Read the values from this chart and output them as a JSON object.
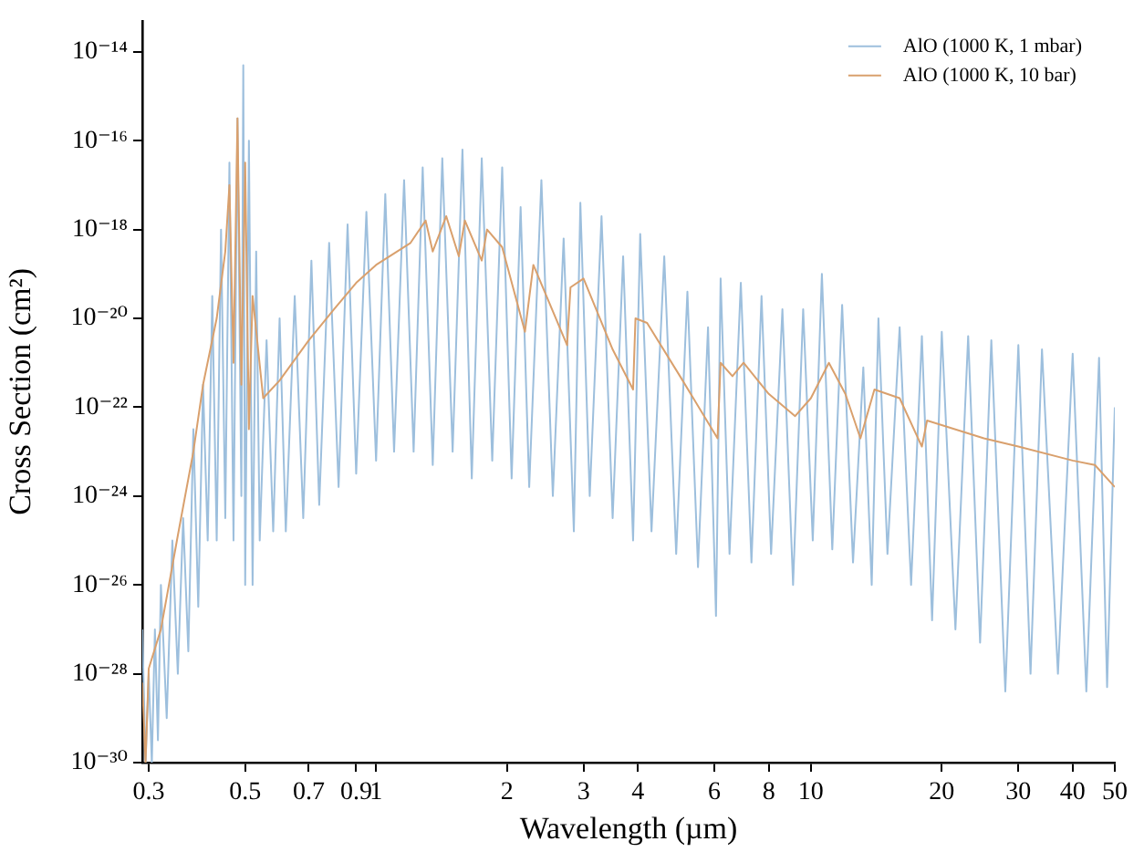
{
  "chart_data": {
    "type": "line",
    "xlabel": "Wavelength (µm)",
    "ylabel": "Cross Section (cm²)",
    "log": "xy",
    "grid": false,
    "legend": "top right",
    "marker": "none",
    "line_style": "solid",
    "xlim": [
      0.29,
      50
    ],
    "ylim": [
      1e-30,
      5e-14
    ],
    "xticks": [
      0.3,
      0.5,
      0.7,
      0.9,
      1,
      2,
      3,
      4,
      6,
      8,
      10,
      20,
      30,
      40,
      50
    ],
    "yticks": [
      {
        "value": 1e-30,
        "label": "10⁻³⁰"
      },
      {
        "value": 1e-28,
        "label": "10⁻²⁸"
      },
      {
        "value": 1e-26,
        "label": "10⁻²⁶"
      },
      {
        "value": 1e-24,
        "label": "10⁻²⁴"
      },
      {
        "value": 1e-22,
        "label": "10⁻²²"
      },
      {
        "value": 1e-20,
        "label": "10⁻²⁰"
      },
      {
        "value": 1e-18,
        "label": "10⁻¹⁸"
      },
      {
        "value": 1e-16,
        "label": "10⁻¹⁶"
      },
      {
        "value": 1e-14,
        "label": "10⁻¹⁴"
      }
    ],
    "series": [
      {
        "name": "AlO (1000 K, 1 mbar)",
        "color": "#9dbfdd",
        "x": [
          0.29,
          0.295,
          0.3,
          0.305,
          0.31,
          0.315,
          0.32,
          0.33,
          0.34,
          0.35,
          0.36,
          0.37,
          0.38,
          0.39,
          0.4,
          0.41,
          0.42,
          0.43,
          0.44,
          0.45,
          0.46,
          0.47,
          0.48,
          0.49,
          0.495,
          0.5,
          0.51,
          0.52,
          0.53,
          0.54,
          0.56,
          0.58,
          0.6,
          0.62,
          0.65,
          0.68,
          0.71,
          0.74,
          0.78,
          0.82,
          0.86,
          0.9,
          0.95,
          1.0,
          1.05,
          1.1,
          1.16,
          1.22,
          1.28,
          1.35,
          1.42,
          1.5,
          1.58,
          1.66,
          1.75,
          1.85,
          1.95,
          2.05,
          2.15,
          2.25,
          2.4,
          2.55,
          2.7,
          2.85,
          2.95,
          3.1,
          3.3,
          3.5,
          3.7,
          3.9,
          4.05,
          4.3,
          4.6,
          4.9,
          5.2,
          5.5,
          5.8,
          6.05,
          6.2,
          6.5,
          6.9,
          7.3,
          7.7,
          8.1,
          8.6,
          9.1,
          9.6,
          10.1,
          10.6,
          11.2,
          11.8,
          12.5,
          13.2,
          13.8,
          14.3,
          15,
          16,
          17,
          18,
          19,
          20,
          21.5,
          23,
          24.5,
          26,
          28,
          30,
          32,
          34,
          37,
          40,
          43,
          46,
          48,
          50
        ],
        "values": [
          1e-27,
          1e-30,
          1e-28,
          1e-30,
          1e-27,
          3.2e-30,
          1e-26,
          1e-29,
          1e-25,
          1e-28,
          3.2e-25,
          3.2e-28,
          3.2e-23,
          3.2e-27,
          3.2e-22,
          1e-25,
          3.2e-20,
          1e-25,
          1e-18,
          3.2e-25,
          3.2e-17,
          1e-25,
          3.2e-16,
          1e-24,
          5e-15,
          1e-26,
          1e-16,
          1e-26,
          3.2e-19,
          1e-25,
          3.2e-21,
          1.6e-25,
          1e-20,
          1.6e-25,
          3.2e-20,
          3.2e-25,
          2e-19,
          6.3e-25,
          5e-19,
          1.6e-24,
          1.3e-18,
          3.2e-24,
          2.5e-18,
          6.3e-24,
          6.3e-18,
          1e-23,
          1.3e-17,
          1e-23,
          2.5e-17,
          5e-24,
          4e-17,
          1e-23,
          6.3e-17,
          2.5e-24,
          4e-17,
          6.3e-24,
          2.5e-17,
          2.5e-24,
          3.2e-18,
          1.6e-24,
          1.3e-17,
          1e-24,
          6.3e-19,
          1.6e-25,
          4e-18,
          1e-24,
          2e-18,
          3.2e-25,
          2.5e-19,
          1e-25,
          7.9e-19,
          1.6e-25,
          2.5e-19,
          5e-26,
          4e-20,
          2.5e-26,
          6.3e-21,
          2e-27,
          7.9e-20,
          5e-26,
          6.3e-20,
          3.2e-26,
          3.2e-20,
          5e-26,
          1.6e-20,
          1e-26,
          1.6e-20,
          1e-25,
          1e-19,
          6.3e-26,
          2e-20,
          3.2e-26,
          7.9e-22,
          1e-26,
          1e-20,
          5e-26,
          6.3e-21,
          1e-26,
          4e-21,
          1.6e-27,
          5e-21,
          1e-27,
          4e-21,
          5e-28,
          3.2e-21,
          4e-29,
          2.5e-21,
          1e-28,
          2e-21,
          1e-28,
          1.6e-21,
          4e-29,
          1.3e-21,
          5e-29,
          1e-22
        ]
      },
      {
        "name": "AlO (1000 K, 10 bar)",
        "color": "#d9a06d",
        "x": [
          0.29,
          0.295,
          0.3,
          0.32,
          0.35,
          0.38,
          0.4,
          0.43,
          0.45,
          0.46,
          0.47,
          0.48,
          0.49,
          0.5,
          0.51,
          0.52,
          0.55,
          0.6,
          0.7,
          0.8,
          0.9,
          1.0,
          1.2,
          1.3,
          1.35,
          1.45,
          1.55,
          1.6,
          1.75,
          1.8,
          1.95,
          2.2,
          2.3,
          2.75,
          2.8,
          3.0,
          3.5,
          3.9,
          3.95,
          4.2,
          5,
          6.1,
          6.2,
          6.6,
          7,
          8,
          9.2,
          10,
          11,
          12,
          13,
          14,
          16,
          18,
          18.5,
          25,
          30,
          40,
          45,
          50
        ],
        "values": [
          6.3e-29,
          1e-30,
          1.3e-28,
          1e-27,
          1.3e-25,
          1e-23,
          3.2e-22,
          1e-20,
          3.2e-19,
          1e-17,
          1e-21,
          3.2e-16,
          3.2e-22,
          3.2e-17,
          3.2e-23,
          3.2e-20,
          1.6e-22,
          4e-22,
          3.2e-21,
          1.6e-20,
          6.3e-20,
          1.6e-19,
          5e-19,
          1.6e-18,
          3.2e-19,
          2e-18,
          2.5e-19,
          1.6e-18,
          2e-19,
          1e-18,
          4e-19,
          5e-21,
          1.6e-19,
          2.5e-21,
          5e-20,
          7.9e-20,
          2e-21,
          2.5e-22,
          1e-20,
          7.9e-21,
          5e-22,
          2e-23,
          1e-21,
          5e-22,
          1e-21,
          2e-22,
          6.3e-23,
          1.6e-22,
          1e-21,
          2e-22,
          2e-23,
          2.5e-22,
          1.6e-22,
          1.3e-23,
          5e-23,
          2e-23,
          1.3e-23,
          6.3e-24,
          5e-24,
          1.6e-24
        ]
      }
    ]
  }
}
